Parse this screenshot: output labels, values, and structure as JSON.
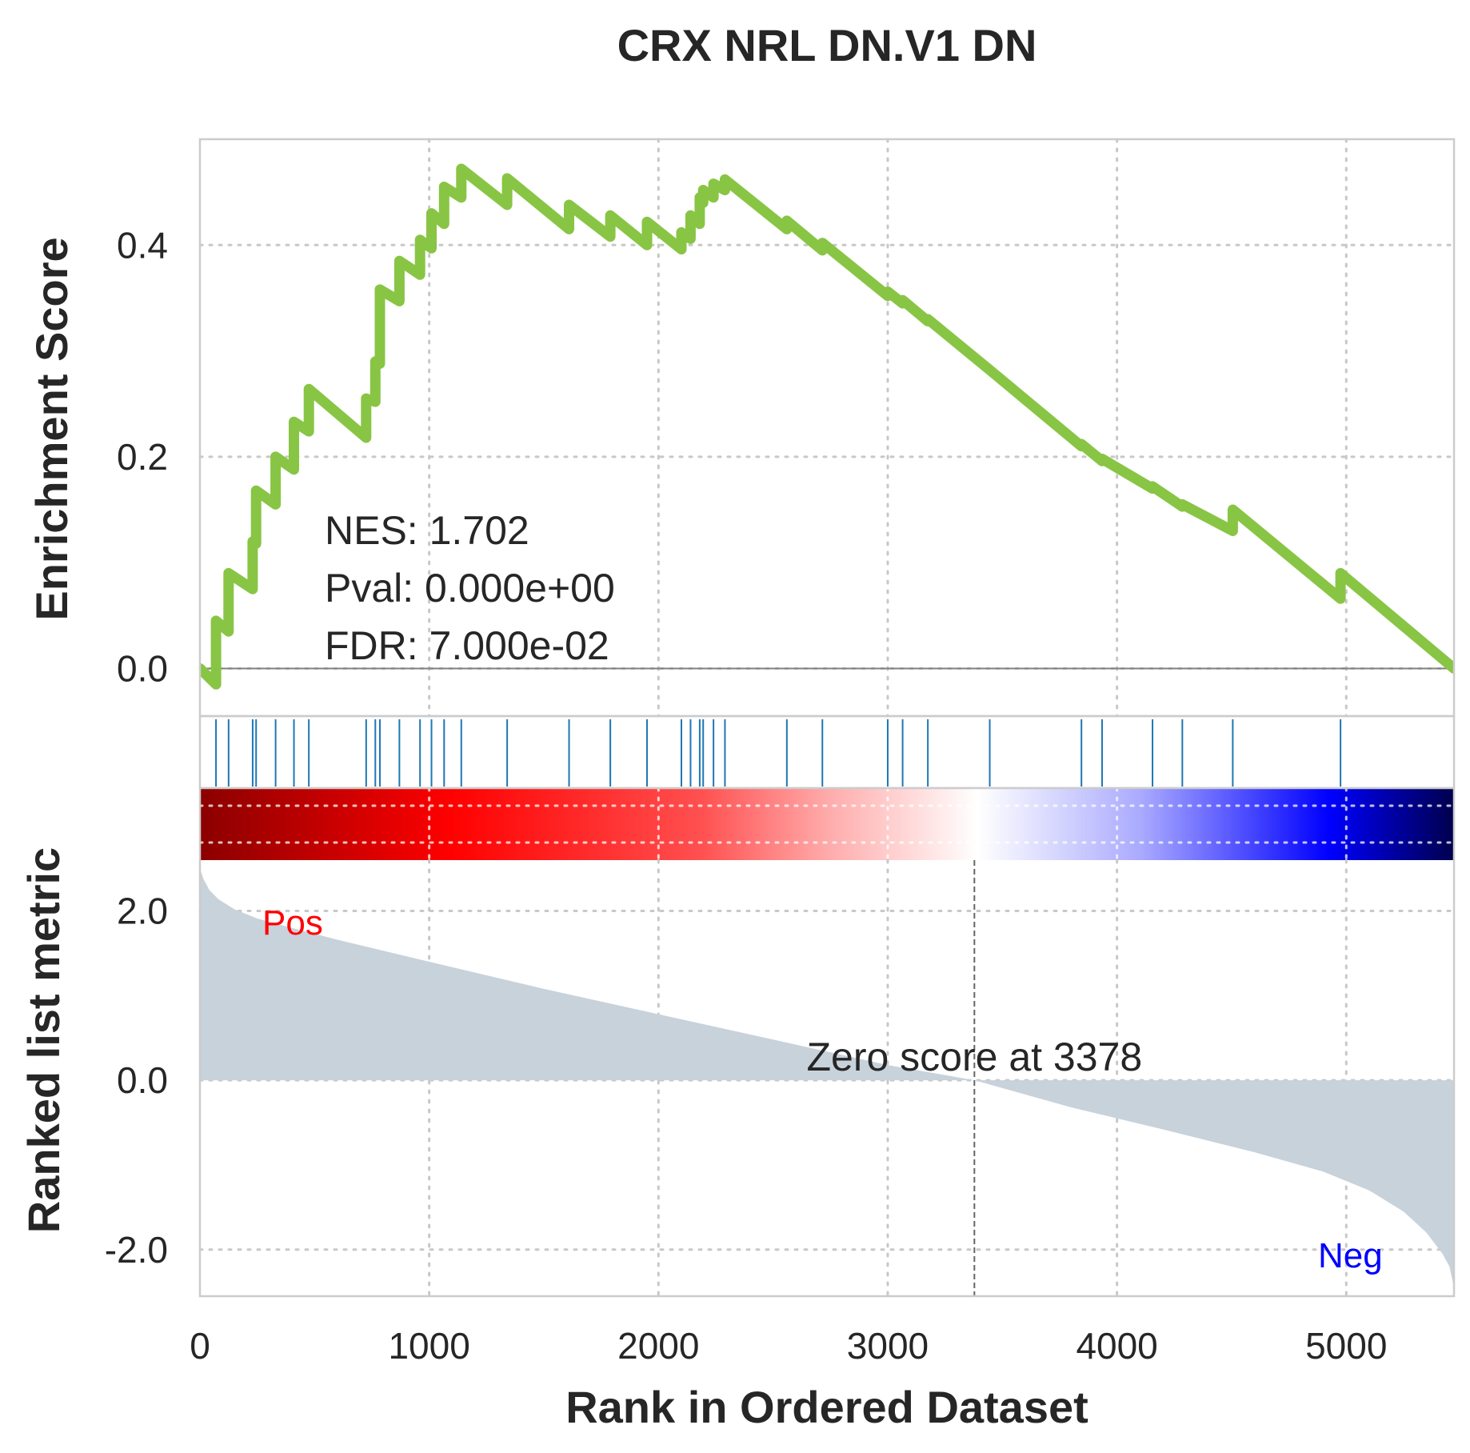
{
  "chart_data": {
    "type": "line",
    "title": "CRX NRL DN.V1 DN",
    "xlabel": "Rank in Ordered Dataset",
    "xlim": [
      0,
      5470
    ],
    "x_ticks": [
      0,
      1000,
      2000,
      3000,
      4000,
      5000
    ],
    "x_tick_labels": [
      "0",
      "1000",
      "2000",
      "3000",
      "4000",
      "5000"
    ],
    "grid": true,
    "enrichment_panel": {
      "ylabel": "Enrichment Score",
      "ylim": [
        -0.045,
        0.5
      ],
      "y_ticks": [
        0.0,
        0.2,
        0.4
      ],
      "y_tick_labels": [
        "0.0",
        "0.2",
        "0.4"
      ],
      "line_color": "#88c544",
      "baseline": 0.0,
      "hit_color": "#1f77b4",
      "hits": [
        70,
        125,
        230,
        245,
        330,
        410,
        475,
        725,
        765,
        785,
        870,
        960,
        1010,
        1065,
        1140,
        1340,
        1610,
        1790,
        1950,
        2100,
        2140,
        2180,
        2195,
        2240,
        2290,
        2560,
        2715,
        3000,
        3065,
        3175,
        3445,
        3845,
        3935,
        4155,
        4285,
        4505,
        4975
      ],
      "series": [
        {
          "x": [
            0,
            70,
            70,
            125,
            125,
            230,
            230,
            245,
            245,
            330,
            330,
            410,
            410,
            475,
            475,
            725,
            725,
            765,
            765,
            785,
            785,
            870,
            870,
            960,
            960,
            1010,
            1010,
            1065,
            1065,
            1140,
            1140,
            1340,
            1340,
            1610,
            1610,
            1790,
            1790,
            1950,
            1950,
            2100,
            2100,
            2140,
            2140,
            2180,
            2180,
            2195,
            2195,
            2240,
            2240,
            2290,
            2290,
            2560,
            2560,
            2715,
            2715,
            3000,
            3000,
            3065,
            3065,
            3175,
            3175,
            3445,
            3445,
            3845,
            3845,
            3935,
            3935,
            4155,
            4155,
            4285,
            4285,
            4505,
            4505,
            4975,
            4975,
            5470
          ],
          "values": [
            0.0,
            -0.015,
            0.045,
            0.035,
            0.09,
            0.075,
            0.12,
            0.118,
            0.168,
            0.155,
            0.2,
            0.188,
            0.233,
            0.224,
            0.264,
            0.218,
            0.255,
            0.252,
            0.29,
            0.288,
            0.358,
            0.347,
            0.385,
            0.372,
            0.405,
            0.397,
            0.43,
            0.42,
            0.455,
            0.445,
            0.472,
            0.438,
            0.463,
            0.415,
            0.438,
            0.408,
            0.428,
            0.4,
            0.422,
            0.396,
            0.412,
            0.406,
            0.428,
            0.42,
            0.445,
            0.44,
            0.452,
            0.445,
            0.458,
            0.452,
            0.462,
            0.415,
            0.423,
            0.395,
            0.402,
            0.352,
            0.356,
            0.345,
            0.348,
            0.328,
            0.33,
            0.282,
            0.282,
            0.21,
            0.212,
            0.196,
            0.198,
            0.17,
            0.172,
            0.153,
            0.155,
            0.13,
            0.15,
            0.066,
            0.09,
            0.0
          ]
        }
      ]
    },
    "stats": {
      "nes": "NES: 1.702",
      "pval": "Pval: 0.000e+00",
      "fdr": "FDR: 7.000e-02"
    },
    "colorbar": {
      "stops": [
        {
          "pos": 0.0,
          "color": "#8b0000"
        },
        {
          "pos": 0.2,
          "color": "#ff0000"
        },
        {
          "pos": 0.4,
          "color": "#ff5050"
        },
        {
          "pos": 0.5,
          "color": "#ffaaaa"
        },
        {
          "pos": 0.62,
          "color": "#ffffff"
        },
        {
          "pos": 0.75,
          "color": "#aaaaff"
        },
        {
          "pos": 0.9,
          "color": "#0000ff"
        },
        {
          "pos": 1.0,
          "color": "#00004d"
        }
      ]
    },
    "ranked_panel": {
      "ylabel": "Ranked list metric",
      "ylim": [
        -2.55,
        2.6
      ],
      "y_ticks": [
        2.0,
        0.0,
        -2.0
      ],
      "y_tick_labels": [
        "2.0",
        "0.0",
        "-2.0"
      ],
      "fill_color": "#c8d2db",
      "zero_cross": 3378,
      "zero_label": "Zero score at 3378",
      "pos_label": "Pos",
      "pos_color": "#ff0000",
      "neg_label": "Neg",
      "neg_color": "#0000ff",
      "x": [
        0,
        15,
        40,
        80,
        150,
        250,
        400,
        600,
        1000,
        1500,
        2000,
        2500,
        3000,
        3378,
        3800,
        4200,
        4600,
        4900,
        5100,
        5250,
        5350,
        5420,
        5450,
        5470
      ],
      "values": [
        2.5,
        2.38,
        2.25,
        2.14,
        2.02,
        1.91,
        1.8,
        1.66,
        1.4,
        1.08,
        0.78,
        0.48,
        0.18,
        0.0,
        -0.32,
        -0.58,
        -0.85,
        -1.08,
        -1.3,
        -1.55,
        -1.8,
        -2.05,
        -2.2,
        -2.45
      ]
    }
  }
}
